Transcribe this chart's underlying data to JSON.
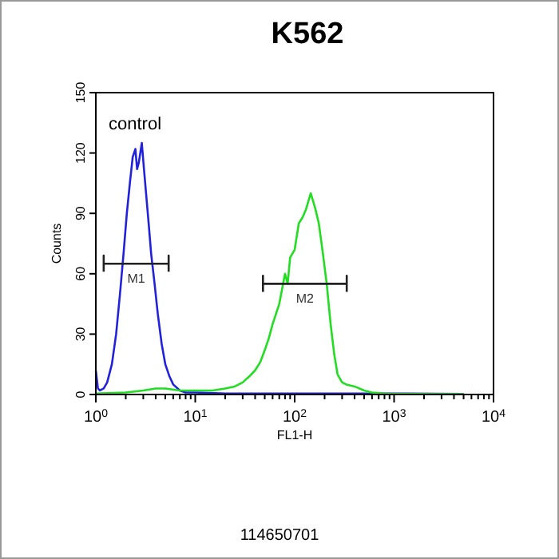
{
  "chart_data": {
    "type": "line",
    "title": "K562",
    "xlabel": "FL1-H",
    "ylabel": "Counts",
    "annotations": [
      "control",
      "114650701"
    ],
    "xlim": [
      1,
      10000
    ],
    "ylim": [
      0,
      150
    ],
    "log": "x",
    "grid": false,
    "marker": "none",
    "line_style": "solid",
    "xticks": [
      {
        "value": 1,
        "label": "10$^{0}$"
      },
      {
        "value": 2,
        "label": null
      },
      {
        "value": 3,
        "label": null
      },
      {
        "value": 4,
        "label": null
      },
      {
        "value": 5,
        "label": null
      },
      {
        "value": 6,
        "label": null
      },
      {
        "value": 7,
        "label": null
      },
      {
        "value": 8,
        "label": null
      },
      {
        "value": 9,
        "label": null
      },
      {
        "value": 10,
        "label": "10$^{1}$"
      },
      {
        "value": 20,
        "label": null
      },
      {
        "value": 30,
        "label": null
      },
      {
        "value": 40,
        "label": null
      },
      {
        "value": 50,
        "label": null
      },
      {
        "value": 60,
        "label": null
      },
      {
        "value": 70,
        "label": null
      },
      {
        "value": 80,
        "label": null
      },
      {
        "value": 90,
        "label": null
      },
      {
        "value": 100,
        "label": "10$^{2}$"
      },
      {
        "value": 200,
        "label": null
      },
      {
        "value": 300,
        "label": null
      },
      {
        "value": 400,
        "label": null
      },
      {
        "value": 500,
        "label": null
      },
      {
        "value": 600,
        "label": null
      },
      {
        "value": 700,
        "label": null
      },
      {
        "value": 800,
        "label": null
      },
      {
        "value": 900,
        "label": null
      },
      {
        "value": 1000,
        "label": "10$^{3}$"
      },
      {
        "value": 2000,
        "label": null
      },
      {
        "value": 3000,
        "label": null
      },
      {
        "value": 4000,
        "label": null
      },
      {
        "value": 5000,
        "label": null
      },
      {
        "value": 6000,
        "label": null
      },
      {
        "value": 7000,
        "label": null
      },
      {
        "value": 8000,
        "label": null
      },
      {
        "value": 9000,
        "label": null
      },
      {
        "value": 10000,
        "label": "10$^{4}$"
      }
    ],
    "yticks": [
      0,
      30,
      60,
      90,
      120,
      150
    ],
    "series": [
      {
        "color": "#2222dd",
        "x": [
          1,
          1.05,
          1.1,
          1.2,
          1.3,
          1.45,
          1.6,
          1.75,
          1.9,
          2.05,
          2.2,
          2.35,
          2.5,
          2.6,
          2.7,
          2.8,
          2.9,
          3.05,
          3.2,
          3.4,
          3.6,
          3.9,
          4.2,
          4.6,
          5,
          5.5,
          6,
          7,
          8,
          10,
          20,
          50,
          100,
          1000,
          5000
        ],
        "values": [
          12,
          3,
          2,
          3,
          6,
          15,
          30,
          50,
          70,
          90,
          105,
          118,
          122,
          112,
          115,
          120,
          125,
          112,
          100,
          85,
          70,
          55,
          40,
          25,
          15,
          9,
          5,
          2,
          1,
          1,
          0.5,
          0.5,
          0.5,
          0.5,
          0.3
        ]
      },
      {
        "color": "#22dd22",
        "x": [
          1,
          2,
          3,
          4,
          5,
          7,
          10,
          15,
          20,
          25,
          30,
          35,
          40,
          45,
          50,
          55,
          60,
          70,
          80,
          85,
          90,
          100,
          110,
          120,
          130,
          145,
          160,
          175,
          190,
          210,
          230,
          250,
          270,
          300,
          330,
          400,
          500,
          600,
          800,
          1000,
          5000
        ],
        "values": [
          0.5,
          1,
          2,
          3,
          3,
          2,
          2,
          2,
          3,
          4,
          6,
          9,
          12,
          16,
          22,
          28,
          35,
          45,
          60,
          55,
          68,
          72,
          85,
          88,
          92,
          100,
          93,
          85,
          72,
          55,
          35,
          20,
          10,
          6,
          5,
          4,
          2,
          1,
          0.5,
          0.3,
          0.2
        ]
      },
      {
        "name": "M1",
        "color": "#222222",
        "x": [
          1.2,
          1.2,
          1.2,
          5.4,
          5.4,
          5.4
        ],
        "values": [
          61,
          69,
          65,
          65,
          69,
          61
        ]
      },
      {
        "name": "M2",
        "color": "#222222",
        "x": [
          48,
          48,
          48,
          334,
          334,
          334
        ],
        "values": [
          51,
          59,
          55,
          55,
          59,
          51
        ]
      }
    ]
  }
}
